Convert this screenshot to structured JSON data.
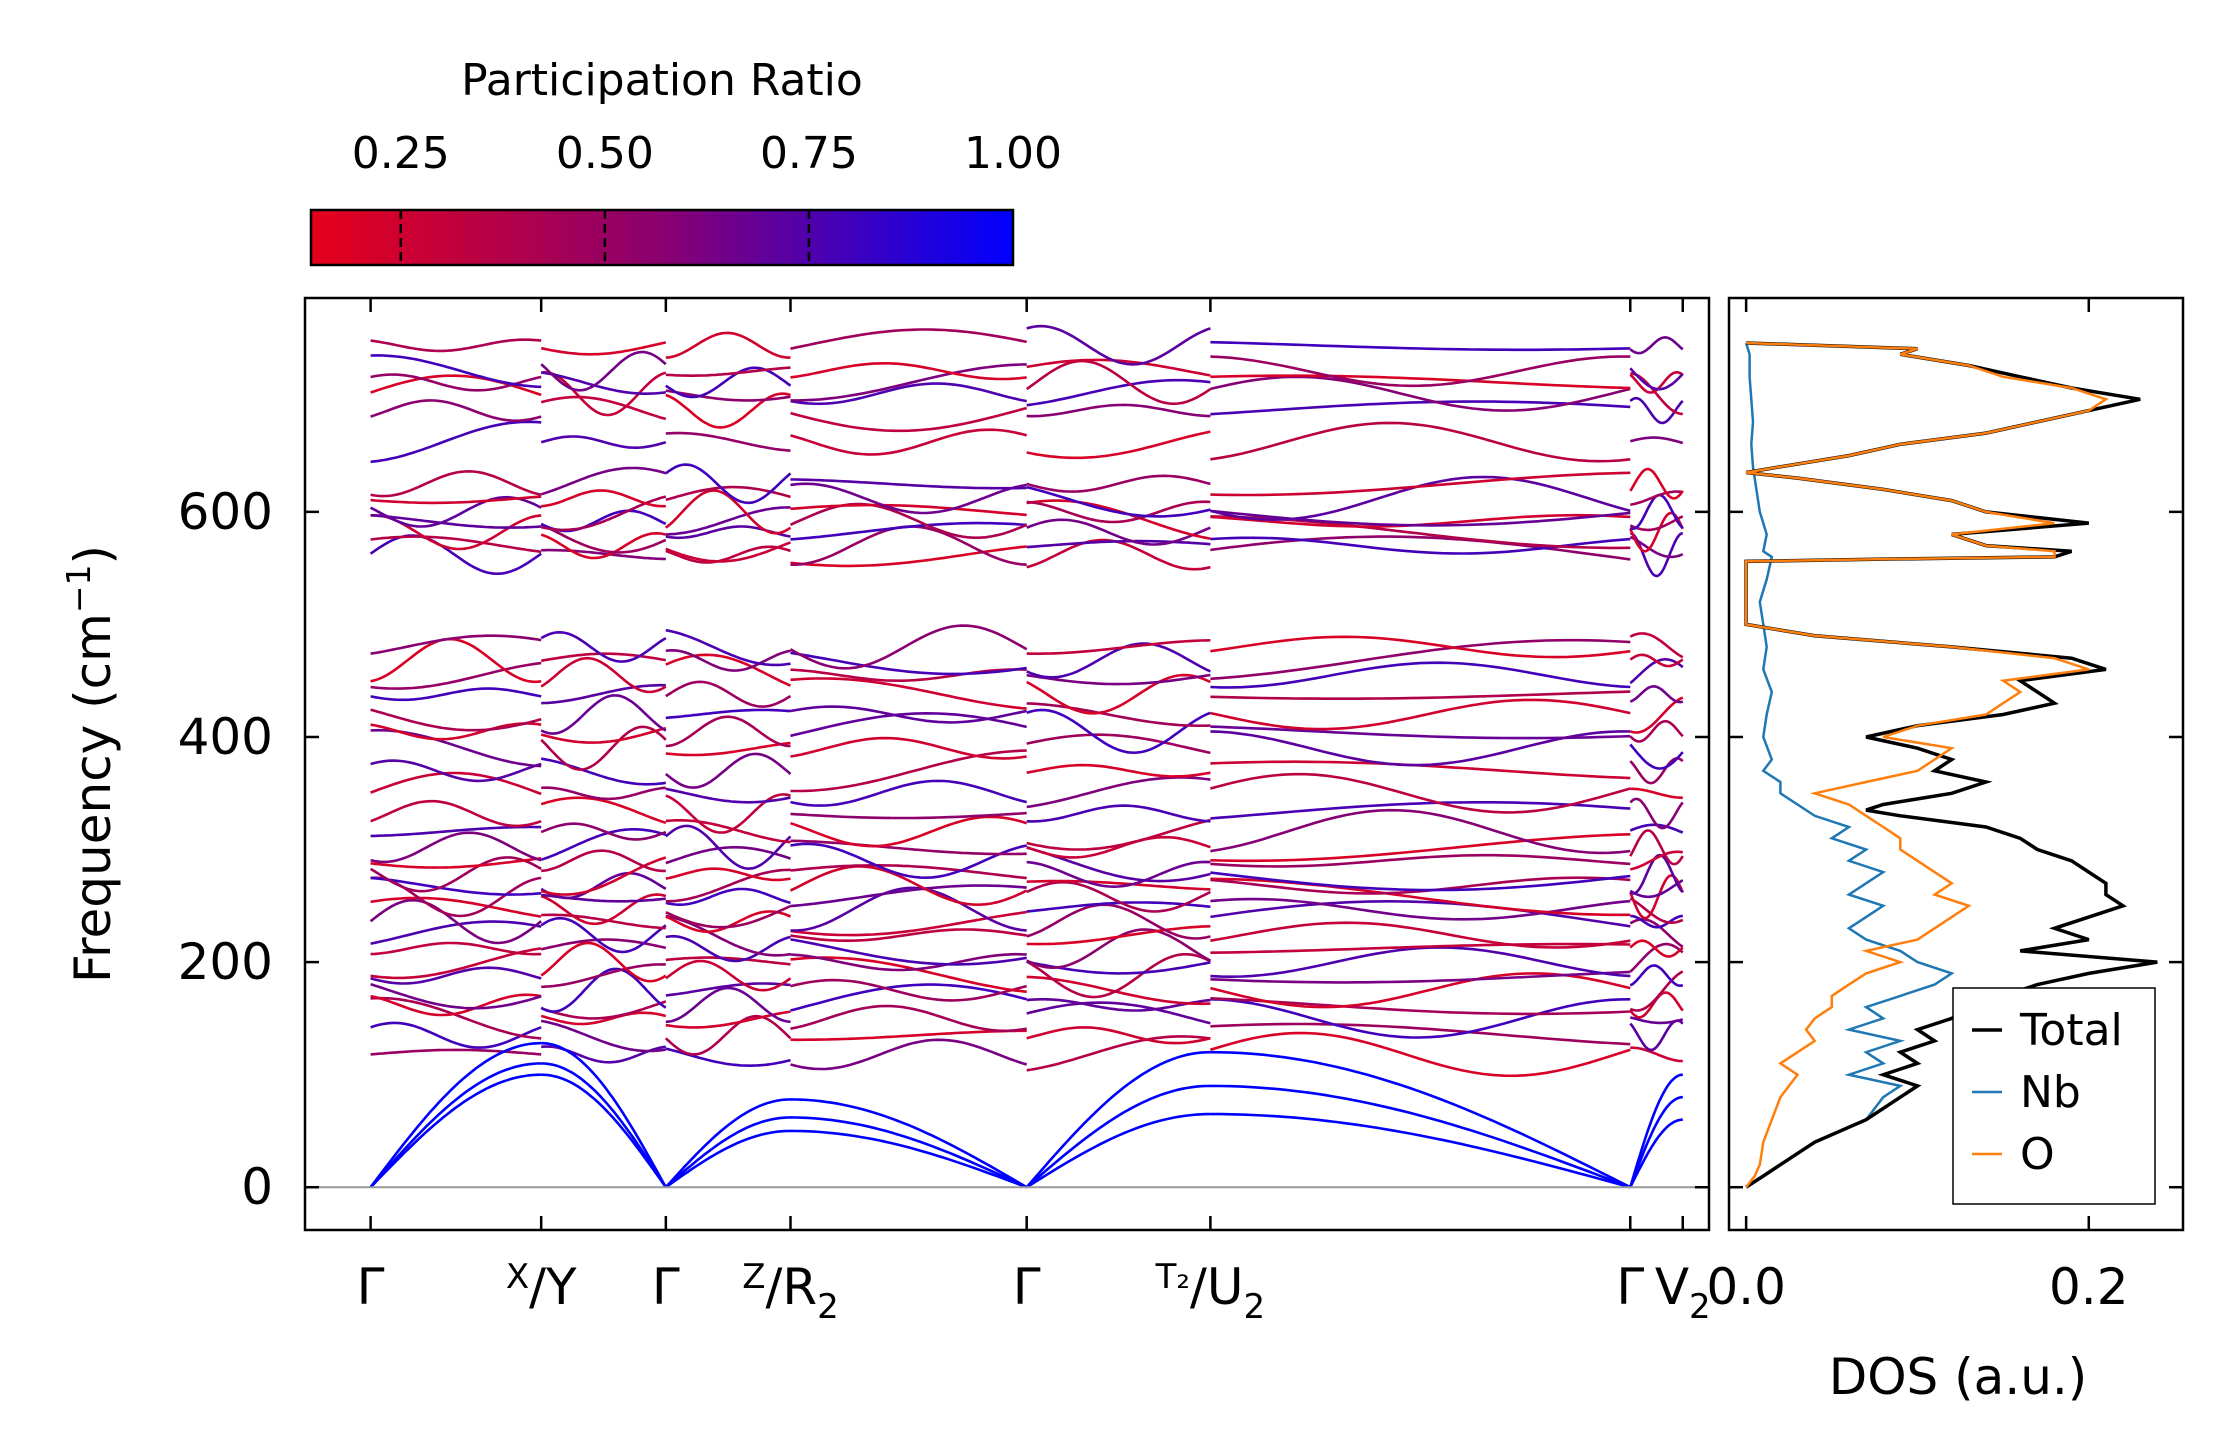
{
  "chart_data": [
    {
      "type": "line",
      "panel": "band-structure",
      "ylabel": "Frequency (cm⁻¹)",
      "ylabel_base": "Frequency (cm",
      "ylabel_sup": "−1",
      "ylabel_close": ")",
      "ylim": [
        -38,
        790
      ],
      "yticks": [
        0,
        200,
        400,
        600
      ],
      "ytick_labels": [
        "0",
        "200",
        "400",
        "600"
      ],
      "xlim": [
        -0.1,
        2.04
      ],
      "kpoints": [
        {
          "x": 0.0,
          "main": "Γ"
        },
        {
          "x": 0.26,
          "pre": "X",
          "main": "/Y"
        },
        {
          "x": 0.45,
          "main": "Γ"
        },
        {
          "x": 0.64,
          "pre": "Z",
          "main": "/R",
          "sub": "2"
        },
        {
          "x": 1.0,
          "main": "Γ"
        },
        {
          "x": 1.28,
          "pre": "T₂",
          "main": "/U",
          "sub": "2"
        },
        {
          "x": 1.92,
          "main": "Γ"
        },
        {
          "x": 2.0,
          "main": "V",
          "sub": "2"
        }
      ],
      "segments": [
        [
          0.0,
          0.26
        ],
        [
          0.26,
          0.45
        ],
        [
          0.45,
          0.64
        ],
        [
          0.64,
          1.0
        ],
        [
          1.0,
          1.28
        ],
        [
          1.28,
          1.92
        ],
        [
          1.92,
          2.0
        ]
      ],
      "acoustic_gamma": [
        0.0,
        0.45,
        1.0,
        1.92
      ],
      "acoustic_ends": {
        "0.26": [
          100,
          110,
          128
        ],
        "0.45": [
          0,
          0,
          0
        ],
        "0.64": [
          50,
          62,
          78
        ],
        "1.0": [
          0,
          0,
          0
        ],
        "1.28": [
          65,
          90,
          120
        ],
        "1.92": [
          0,
          0,
          0
        ],
        "2.0": [
          85,
          98,
          112
        ]
      },
      "optical_band_frequencies": [
        118,
        135,
        150,
        162,
        175,
        188,
        200,
        212,
        224,
        236,
        247,
        258,
        268,
        278,
        290,
        302,
        316,
        332,
        350,
        370,
        390,
        405,
        420,
        438,
        455,
        468,
        480,
        562,
        570,
        582,
        592,
        600,
        612,
        625,
        662,
        690,
        705,
        715,
        725,
        748
      ],
      "zero_line": 0
    },
    {
      "type": "line",
      "panel": "dos",
      "xlabel": "DOS (a.u.)",
      "xlim": [
        -0.01,
        0.255
      ],
      "xticks": [
        0.0,
        0.2
      ],
      "xtick_labels": [
        "0.0",
        "0.2"
      ],
      "ylim": [
        -38,
        790
      ],
      "series": [
        {
          "name": "Total",
          "color": "#000000",
          "y": [
            0,
            10,
            20,
            40,
            60,
            80,
            90,
            100,
            110,
            120,
            130,
            140,
            150,
            160,
            170,
            180,
            190,
            200,
            210,
            220,
            230,
            240,
            250,
            260,
            270,
            280,
            290,
            300,
            310,
            320,
            330,
            335,
            340,
            350,
            360,
            370,
            380,
            390,
            400,
            410,
            420,
            430,
            440,
            450,
            460,
            470,
            480,
            490,
            495,
            500,
            520,
            540,
            556,
            558,
            560,
            565,
            570,
            580,
            590,
            600,
            610,
            620,
            630,
            635,
            640,
            650,
            660,
            670,
            680,
            690,
            700,
            710,
            720,
            730,
            740,
            745,
            750
          ],
          "values": [
            0.0,
            0.01,
            0.02,
            0.04,
            0.07,
            0.09,
            0.1,
            0.08,
            0.1,
            0.09,
            0.11,
            0.1,
            0.12,
            0.13,
            0.15,
            0.17,
            0.2,
            0.24,
            0.16,
            0.2,
            0.18,
            0.2,
            0.22,
            0.21,
            0.21,
            0.2,
            0.19,
            0.17,
            0.16,
            0.14,
            0.09,
            0.07,
            0.08,
            0.12,
            0.14,
            0.11,
            0.12,
            0.1,
            0.07,
            0.1,
            0.15,
            0.18,
            0.17,
            0.16,
            0.21,
            0.19,
            0.12,
            0.04,
            0.02,
            0.0,
            0.0,
            0.0,
            0.0,
            0.08,
            0.18,
            0.19,
            0.14,
            0.12,
            0.2,
            0.14,
            0.12,
            0.08,
            0.03,
            0.0,
            0.02,
            0.06,
            0.09,
            0.14,
            0.17,
            0.2,
            0.23,
            0.19,
            0.16,
            0.13,
            0.09,
            0.1,
            0.0
          ]
        },
        {
          "name": "Nb",
          "color": "#1f77b4",
          "y": [
            0,
            10,
            20,
            40,
            60,
            80,
            90,
            100,
            110,
            120,
            130,
            140,
            150,
            160,
            170,
            180,
            190,
            200,
            210,
            220,
            230,
            240,
            250,
            260,
            270,
            280,
            290,
            300,
            310,
            320,
            330,
            340,
            350,
            360,
            370,
            380,
            400,
            420,
            440,
            460,
            480,
            500,
            520,
            540,
            560,
            565,
            580,
            600,
            620,
            640,
            660,
            680,
            700,
            720,
            740,
            750
          ],
          "values": [
            0.0,
            0.01,
            0.02,
            0.04,
            0.07,
            0.08,
            0.09,
            0.06,
            0.08,
            0.07,
            0.09,
            0.06,
            0.08,
            0.07,
            0.09,
            0.11,
            0.12,
            0.1,
            0.09,
            0.07,
            0.06,
            0.07,
            0.08,
            0.06,
            0.07,
            0.08,
            0.06,
            0.07,
            0.05,
            0.06,
            0.04,
            0.03,
            0.02,
            0.02,
            0.01,
            0.015,
            0.01,
            0.012,
            0.015,
            0.01,
            0.012,
            0.01,
            0.008,
            0.012,
            0.015,
            0.01,
            0.012,
            0.008,
            0.006,
            0.004,
            0.003,
            0.004,
            0.003,
            0.002,
            0.002,
            0.0
          ]
        },
        {
          "name": "O",
          "color": "#ff7f0e",
          "y": [
            0,
            10,
            20,
            40,
            60,
            80,
            90,
            100,
            110,
            120,
            130,
            140,
            150,
            160,
            170,
            180,
            190,
            200,
            210,
            220,
            230,
            240,
            250,
            260,
            270,
            280,
            290,
            300,
            310,
            320,
            330,
            340,
            350,
            360,
            370,
            380,
            390,
            400,
            410,
            420,
            430,
            440,
            450,
            460,
            470,
            480,
            490,
            495,
            500,
            520,
            540,
            556,
            558,
            560,
            565,
            570,
            580,
            590,
            600,
            610,
            620,
            630,
            635,
            640,
            650,
            660,
            670,
            680,
            690,
            700,
            710,
            720,
            730,
            740,
            745,
            750
          ],
          "values": [
            0.0,
            0.005,
            0.008,
            0.01,
            0.015,
            0.02,
            0.025,
            0.03,
            0.02,
            0.03,
            0.04,
            0.035,
            0.04,
            0.05,
            0.05,
            0.06,
            0.07,
            0.09,
            0.07,
            0.1,
            0.11,
            0.12,
            0.13,
            0.11,
            0.12,
            0.11,
            0.1,
            0.09,
            0.09,
            0.08,
            0.07,
            0.06,
            0.04,
            0.07,
            0.1,
            0.11,
            0.12,
            0.08,
            0.1,
            0.14,
            0.15,
            0.16,
            0.15,
            0.2,
            0.18,
            0.12,
            0.04,
            0.02,
            0.0,
            0.0,
            0.0,
            0.0,
            0.08,
            0.18,
            0.18,
            0.14,
            0.12,
            0.18,
            0.14,
            0.12,
            0.08,
            0.03,
            0.0,
            0.02,
            0.06,
            0.09,
            0.14,
            0.17,
            0.2,
            0.21,
            0.19,
            0.15,
            0.13,
            0.09,
            0.1,
            0.0
          ]
        }
      ],
      "legend": {
        "entries": [
          "Total",
          "Nb",
          "O"
        ],
        "placement": "bottom-right"
      }
    }
  ],
  "colorbar": {
    "title": "Participation Ratio",
    "range": [
      0.14,
      1.0
    ],
    "ticks": [
      0.25,
      0.5,
      0.75,
      1.0
    ],
    "tick_labels": [
      "0.25",
      "0.50",
      "0.75",
      "1.00"
    ],
    "color_low": "#e6001a",
    "color_mid": "#8a0070",
    "color_high": "#0000ff"
  },
  "colors": {
    "zero_line": "#999999",
    "axis": "#000000"
  }
}
